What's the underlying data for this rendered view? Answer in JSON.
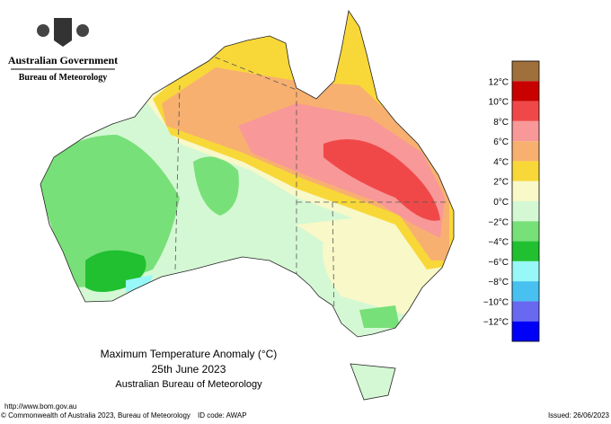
{
  "header": {
    "government": "Australian Government",
    "bureau": "Bureau of Meteorology"
  },
  "title": {
    "line1": "Maximum Temperature Anomaly (°C)",
    "line2": "25th June 2023",
    "line3": "Australian Bureau of Meteorology"
  },
  "legend": {
    "colors": [
      "#a0703c",
      "#c80000",
      "#f04848",
      "#f89898",
      "#f8b070",
      "#f8d838",
      "#f8f8c8",
      "#d4f8d4",
      "#78e078",
      "#20c030",
      "#98f8f8",
      "#48c0f0",
      "#6868f0",
      "#0000f8"
    ],
    "labels": [
      "12°C",
      "10°C",
      "8°C",
      "6°C",
      "4°C",
      "2°C",
      "0°C",
      "−2°C",
      "−4°C",
      "−6°C",
      "−8°C",
      "−10°C",
      "−12°C"
    ]
  },
  "footer": {
    "url": "http://www.bom.gov.au",
    "copyright": "© Commonwealth of Australia 2023, Bureau of Meteorology",
    "id_code": "ID code: AWAP",
    "issued": "Issued: 26/06/2023"
  }
}
